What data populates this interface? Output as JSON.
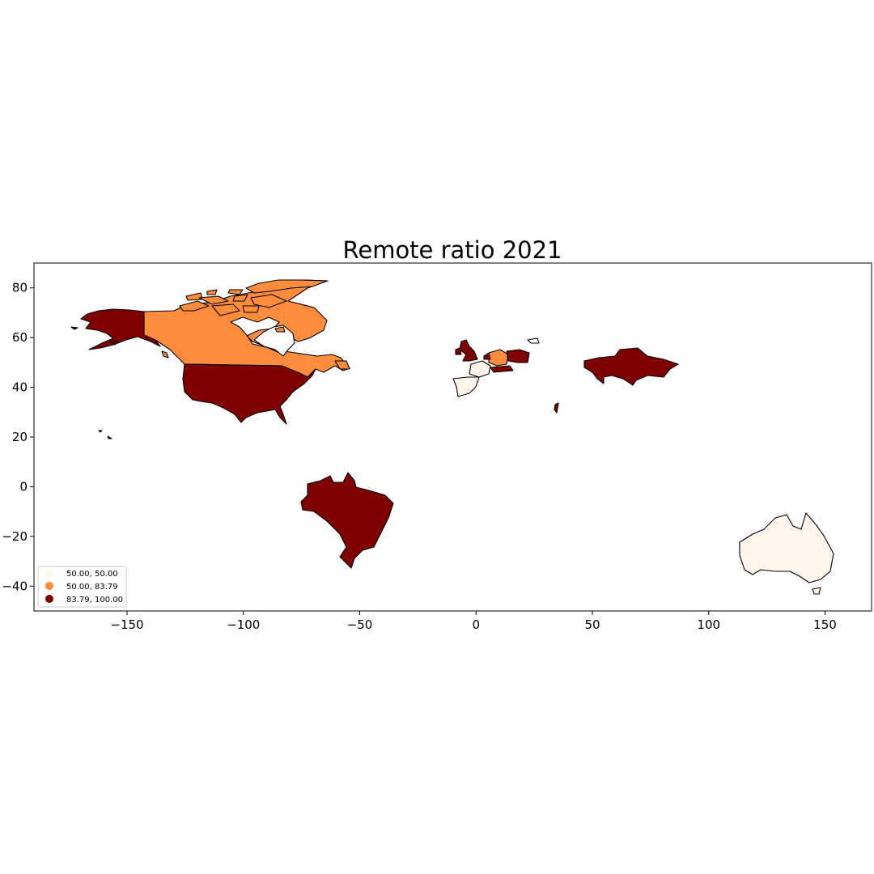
{
  "chart_data": {
    "type": "choropleth",
    "title": "Remote ratio 2021",
    "xlabel": "",
    "ylabel": "",
    "xlim": [
      -190,
      170
    ],
    "ylim": [
      -50,
      90
    ],
    "x_ticks": [
      -150,
      -100,
      -50,
      0,
      50,
      100,
      150
    ],
    "y_ticks": [
      80,
      60,
      40,
      20,
      0,
      -20,
      -40
    ],
    "x_tick_labels": [
      "−150",
      "−100",
      "−50",
      "0",
      "50",
      "100",
      "150"
    ],
    "y_tick_labels": [
      "80",
      "60",
      "40",
      "20",
      "0",
      "−20",
      "−40"
    ],
    "grid": false,
    "legend_position": "lower-left",
    "legend": [
      {
        "label": "50.00,  50.00",
        "color": "#fff5eb"
      },
      {
        "label": "50.00,  83.79",
        "color": "#fd8d3c"
      },
      {
        "label": "83.79, 100.00",
        "color": "#7f0000"
      }
    ],
    "colormap": "OrRd",
    "regions_shaded": [
      {
        "region": "Alaska / United States",
        "class": 2
      },
      {
        "region": "Canada",
        "class": 1
      },
      {
        "region": "Brazil",
        "class": 2
      },
      {
        "region": "United Kingdom",
        "class": 2
      },
      {
        "region": "Spain / France",
        "class": 0
      },
      {
        "region": "Central Europe",
        "class": 1
      },
      {
        "region": "Eastern Europe",
        "class": 2
      },
      {
        "region": "Kazakhstan",
        "class": 2
      },
      {
        "region": "Israel",
        "class": 2
      },
      {
        "region": "Australia",
        "class": 0
      }
    ]
  }
}
